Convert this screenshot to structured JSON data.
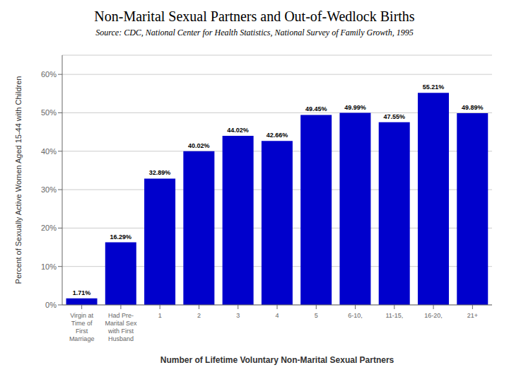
{
  "chart_data": {
    "type": "bar",
    "title": "Non-Marital Sexual Partners and Out-of-Wedlock Births",
    "subtitle": "Source: CDC, National Center for Health Statistics, National Survey of Family Growth, 1995",
    "xlabel": "Number of Lifetime Voluntary Non-Marital Sexual Partners",
    "ylabel": "Percent of Sexually Active Women Aged 15-44 with Children",
    "categories": [
      "Virgin at\nTime of\n  First\nMarriage",
      "Had Pre-\nMarital Sex\nwith First\nHusband",
      "1",
      "2",
      "3",
      "4",
      "5",
      "6-10,",
      "11-15,",
      "16-20,",
      "21+"
    ],
    "values": [
      1.71,
      16.29,
      32.89,
      40.02,
      44.02,
      42.66,
      49.45,
      49.99,
      47.55,
      55.21,
      49.89
    ],
    "value_labels": [
      "1.71%",
      "16.29%",
      "32.89%",
      "40.02%",
      "44.02%",
      "42.66%",
      "49.45%",
      "49.99%",
      "47.55%",
      "55.21%",
      "49.89%"
    ],
    "data_labels": true,
    "color": "#0000CC",
    "ylim": [
      0,
      65
    ],
    "yticks": [
      {
        "value": 0,
        "label": "0%"
      },
      {
        "value": 10,
        "label": "10%"
      },
      {
        "value": 20,
        "label": "20%"
      },
      {
        "value": 30,
        "label": "30%"
      },
      {
        "value": 40,
        "label": "40%"
      },
      {
        "value": 50,
        "label": "50%"
      },
      {
        "value": 60,
        "label": "60%"
      }
    ],
    "grid": true
  }
}
